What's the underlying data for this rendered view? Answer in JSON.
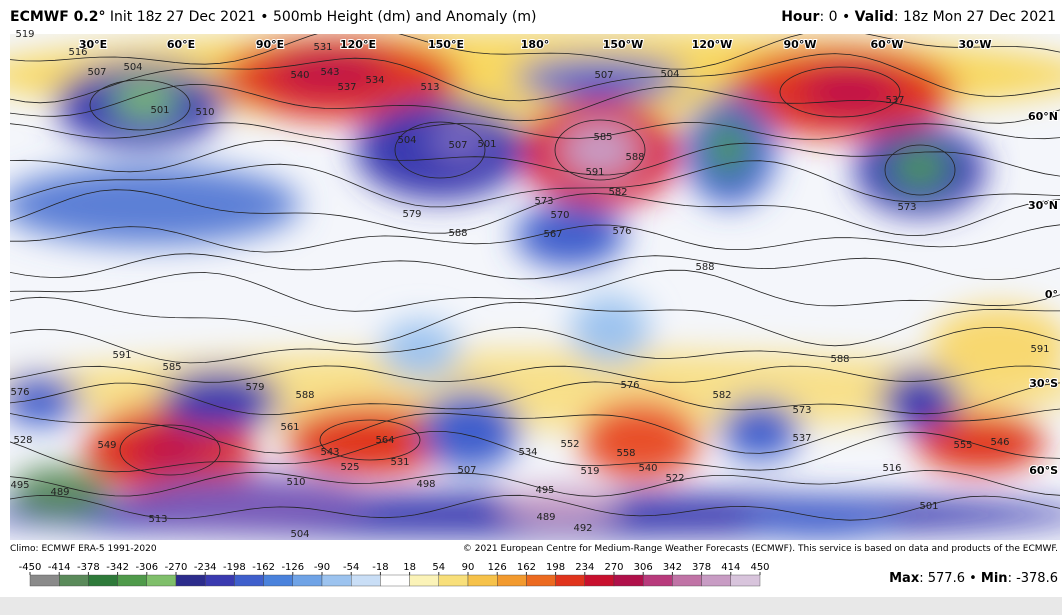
{
  "header": {
    "model": "ECMWF 0.2°",
    "description": "Init 18z 27 Dec 2021 • 500mb Height (dm) and Anomaly (m)",
    "hour_label": "Hour",
    "hour": ": 0 • ",
    "valid_label": "Valid",
    "valid": ": 18z Mon 27 Dec 2021"
  },
  "map": {
    "longitudes": [
      "30°E",
      "60°E",
      "90°E",
      "120°E",
      "150°E",
      "180°",
      "150°W",
      "120°W",
      "90°W",
      "60°W",
      "30°W"
    ],
    "latitudes": [
      "60°N",
      "30°N",
      "0°",
      "30°S",
      "60°S"
    ],
    "contour_labels": [
      "519",
      "516",
      "507",
      "504",
      "501",
      "510",
      "540",
      "543",
      "537",
      "534",
      "531",
      "513",
      "504",
      "507",
      "501",
      "507",
      "504",
      "585",
      "588",
      "591",
      "582",
      "576",
      "570",
      "567",
      "573",
      "588",
      "579",
      "537",
      "573",
      "588",
      "591",
      "588",
      "582",
      "576",
      "573",
      "537",
      "555",
      "546",
      "549",
      "543",
      "564",
      "525",
      "531",
      "507",
      "498",
      "495",
      "489",
      "492",
      "504",
      "513",
      "519",
      "558",
      "540",
      "522",
      "516",
      "501",
      "489",
      "495",
      "510",
      "528",
      "576",
      "591",
      "585",
      "579",
      "588",
      "561",
      "552",
      "534"
    ]
  },
  "footer": {
    "climo": "Climo: ECMWF ERA-5 1991-2020",
    "copyright": "© 2021 European Centre for Medium-Range Weather Forecasts (ECMWF). This service is based on data and products of the ECMWF."
  },
  "colorbar": {
    "ticks": [
      -450,
      -414,
      -378,
      -342,
      -306,
      -270,
      -234,
      -198,
      -162,
      -126,
      -90,
      -54,
      -18,
      18,
      54,
      90,
      126,
      162,
      198,
      234,
      270,
      306,
      342,
      378,
      414,
      450
    ],
    "colors": [
      "#8a8a8a",
      "#5a8a5a",
      "#2e7a3a",
      "#4f9a4a",
      "#7fbf6a",
      "#2c2c8c",
      "#3a3ab0",
      "#3f5fcc",
      "#4a82dc",
      "#6fa3e6",
      "#9cc3ef",
      "#c9def6",
      "#ffffff",
      "#fbf3b8",
      "#f8df7a",
      "#f6c24a",
      "#f29a2e",
      "#ec6a20",
      "#e0341c",
      "#c8102e",
      "#b0104a",
      "#b83a7c",
      "#c073a6",
      "#c89cc4",
      "#d8c4dc"
    ]
  },
  "extremes": {
    "max_label": "Max",
    "max": 577.6,
    "sep": " • ",
    "min_label": "Min",
    "min": -378.6
  }
}
